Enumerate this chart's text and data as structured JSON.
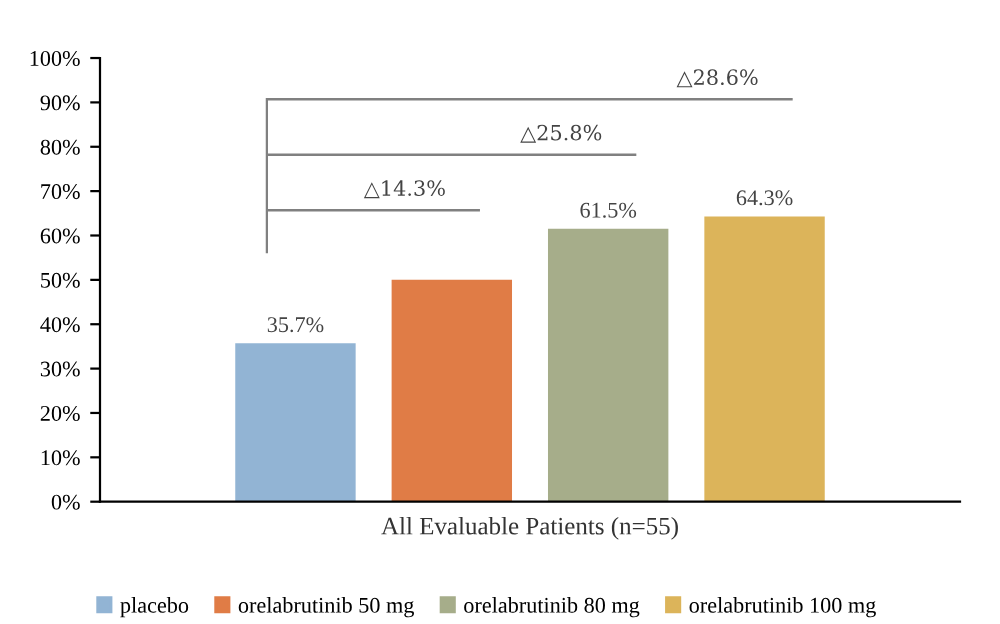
{
  "chart_data": {
    "type": "bar",
    "xlabel": "All Evaluable Patients (n=55)",
    "categories": [
      null
    ],
    "series": [
      {
        "name": "placebo",
        "color": "#92b4d4",
        "values": [
          35.7
        ],
        "value_labels": [
          "35.7%"
        ]
      },
      {
        "name": "orelabrutinib 50 mg",
        "color": "#e07c46",
        "values": [
          50.0
        ],
        "value_labels": [
          null
        ]
      },
      {
        "name": "orelabrutinib 80 mg",
        "color": "#a6ad8a",
        "values": [
          61.5
        ],
        "value_labels": [
          "61.5%"
        ]
      },
      {
        "name": "orelabrutinib 100 mg",
        "color": "#dcb45a",
        "values": [
          64.3
        ],
        "value_labels": [
          "64.3%"
        ]
      }
    ],
    "annotations": [
      "△14.3%",
      "△25.8%",
      "△28.6%"
    ],
    "ylim": [
      0,
      100
    ],
    "yticks": [
      {
        "value": 0,
        "label": "0%"
      },
      {
        "value": 10,
        "label": "10%"
      },
      {
        "value": 20,
        "label": "20%"
      },
      {
        "value": 30,
        "label": "30%"
      },
      {
        "value": 40,
        "label": "40%"
      },
      {
        "value": 50,
        "label": "50%"
      },
      {
        "value": 60,
        "label": "60%"
      },
      {
        "value": 70,
        "label": "70%"
      },
      {
        "value": 80,
        "label": "80%"
      },
      {
        "value": 90,
        "label": "90%"
      },
      {
        "value": 100,
        "label": "100%"
      }
    ],
    "grid": false,
    "legend": "bottom"
  }
}
